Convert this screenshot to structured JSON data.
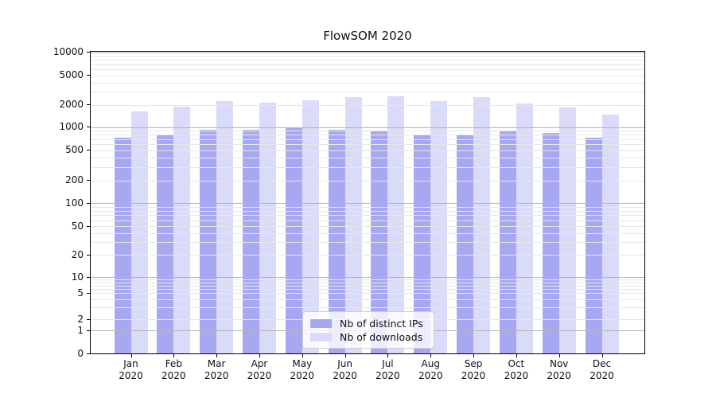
{
  "title": "FlowSOM 2020",
  "colors": {
    "distinct_ips": "#a7a7f2",
    "downloads": "#dadaf9",
    "major_grid": "#b4b4b4",
    "minor_grid": "#e7e7e7"
  },
  "legend": {
    "items": [
      {
        "label": "Nb of distinct IPs",
        "color": "#a7a7f2"
      },
      {
        "label": "Nb of downloads",
        "color": "#dadaf9"
      }
    ]
  },
  "y_axis": {
    "tick_labels": [
      "10000",
      "5000",
      "2000",
      "1000",
      "500",
      "200",
      "100",
      "50",
      "20",
      "10",
      "5",
      "2",
      "1",
      "0"
    ]
  },
  "x_axis": {
    "months": [
      "Jan",
      "Feb",
      "Mar",
      "Apr",
      "May",
      "Jun",
      "Jul",
      "Aug",
      "Sep",
      "Oct",
      "Nov",
      "Dec"
    ],
    "year": "2020"
  },
  "chart_data": {
    "type": "bar",
    "title": "FlowSOM 2020",
    "categories": [
      "Jan 2020",
      "Feb 2020",
      "Mar 2020",
      "Apr 2020",
      "May 2020",
      "Jun 2020",
      "Jul 2020",
      "Aug 2020",
      "Sep 2020",
      "Oct 2020",
      "Nov 2020",
      "Dec 2020"
    ],
    "series": [
      {
        "name": "Nb of distinct IPs",
        "color": "#a7a7f2",
        "values": [
          730,
          810,
          915,
          920,
          990,
          920,
          900,
          785,
          785,
          890,
          840,
          735
        ]
      },
      {
        "name": "Nb of downloads",
        "color": "#dadaf9",
        "values": [
          1620,
          1900,
          2260,
          2130,
          2300,
          2550,
          2640,
          2260,
          2530,
          2110,
          1840,
          1470
        ]
      }
    ],
    "xlabel": "",
    "ylabel": "",
    "y_scale": "symlog",
    "y_ticks": [
      0,
      1,
      2,
      5,
      10,
      20,
      50,
      100,
      200,
      500,
      1000,
      2000,
      5000,
      10000
    ],
    "ylim": [
      0,
      10000
    ],
    "grid": "on, drawn above bars",
    "legend_position": "lower center inside plot"
  }
}
